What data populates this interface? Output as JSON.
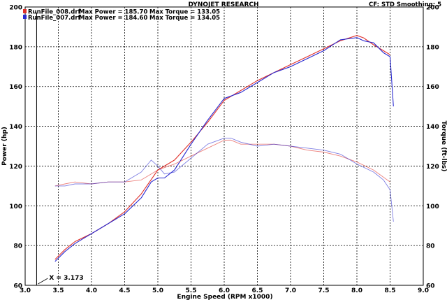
{
  "header": {
    "title": "DYNOJET RESEARCH",
    "info": "CF: STD   Smoothing: 5"
  },
  "legend": [
    {
      "file": "RunFile_008.drf",
      "max_power_label": "Max Power = 185.70",
      "max_torque_label": "Max Torque = 133.05",
      "color": "#e0302a"
    },
    {
      "file": "RunFile_007.drf",
      "max_power_label": "Max Power = 184.60",
      "max_torque_label": "Max Torque = 134.05",
      "color": "#2a2ad0"
    }
  ],
  "cursor_label": "X = 3.173",
  "chart_data": {
    "type": "line",
    "title": "DYNOJET RESEARCH",
    "xlabel": "Engine Speed (RPM x1000)",
    "ylabel": "Power (hp)",
    "y2label": "Torque (ft-lbs)",
    "xlim": [
      3.0,
      9.0
    ],
    "ylim": [
      60,
      200
    ],
    "y2lim": [
      60,
      200
    ],
    "x_ticks": [
      "3.0",
      "3.5",
      "4.0",
      "4.5",
      "5.0",
      "5.5",
      "6.0",
      "6.5",
      "7.0",
      "7.5",
      "8.0",
      "8.5",
      "9.0"
    ],
    "y_ticks": [
      "60",
      "80",
      "100",
      "120",
      "140",
      "160",
      "180",
      "200"
    ],
    "grid": true,
    "cursor_x": 3.173,
    "series": [
      {
        "name": "RunFile_008.drf",
        "metric": "Power",
        "color": "#e0302a",
        "x": [
          3.45,
          3.6,
          3.75,
          4.0,
          4.25,
          4.5,
          4.75,
          5.0,
          5.25,
          5.5,
          5.75,
          6.0,
          6.25,
          6.5,
          6.75,
          7.0,
          7.25,
          7.5,
          7.75,
          8.0,
          8.1,
          8.25,
          8.4,
          8.5
        ],
        "y": [
          73,
          78,
          82,
          86,
          91,
          97,
          106,
          118,
          123,
          132,
          142,
          153,
          158,
          163,
          167,
          171,
          175,
          179,
          183,
          185.7,
          184.5,
          181,
          178,
          176
        ]
      },
      {
        "name": "RunFile_007.drf",
        "metric": "Power",
        "color": "#2a2ad0",
        "x": [
          3.45,
          3.6,
          3.75,
          4.0,
          4.25,
          4.5,
          4.75,
          4.9,
          5.0,
          5.1,
          5.25,
          5.5,
          5.75,
          6.0,
          6.25,
          6.5,
          6.75,
          7.0,
          7.25,
          7.5,
          7.75,
          8.0,
          8.1,
          8.25,
          8.4,
          8.5,
          8.55
        ],
        "y": [
          72,
          77,
          81,
          86,
          91,
          96,
          104,
          112,
          114,
          114,
          118,
          131,
          143,
          154,
          157,
          162,
          167,
          170,
          174,
          178,
          183.5,
          184.6,
          183,
          182,
          177,
          175,
          150
        ]
      },
      {
        "name": "RunFile_008.drf",
        "metric": "Torque",
        "color": "#e0302a",
        "x": [
          3.45,
          3.6,
          3.75,
          4.0,
          4.25,
          4.5,
          4.75,
          5.0,
          5.25,
          5.5,
          5.75,
          6.0,
          6.1,
          6.25,
          6.5,
          6.75,
          7.0,
          7.25,
          7.5,
          7.75,
          8.0,
          8.25,
          8.5
        ],
        "y": [
          110,
          111,
          112,
          111,
          112,
          112,
          113,
          118,
          121,
          125,
          129,
          133,
          133.05,
          131,
          131,
          131,
          130,
          128,
          127,
          125,
          122,
          118,
          112
        ]
      },
      {
        "name": "RunFile_007.drf",
        "metric": "Torque",
        "color": "#2a2ad0",
        "x": [
          3.45,
          3.6,
          3.75,
          4.0,
          4.25,
          4.5,
          4.75,
          4.9,
          5.0,
          5.1,
          5.25,
          5.5,
          5.75,
          6.0,
          6.1,
          6.25,
          6.5,
          6.75,
          7.0,
          7.25,
          7.5,
          7.75,
          8.0,
          8.25,
          8.4,
          8.5,
          8.55
        ],
        "y": [
          110,
          110,
          111,
          111,
          112,
          112,
          117,
          123,
          120,
          116,
          117,
          124,
          131,
          134,
          134.05,
          132,
          130,
          131,
          130,
          129,
          128,
          126,
          121,
          117,
          113,
          108,
          92
        ]
      }
    ]
  }
}
